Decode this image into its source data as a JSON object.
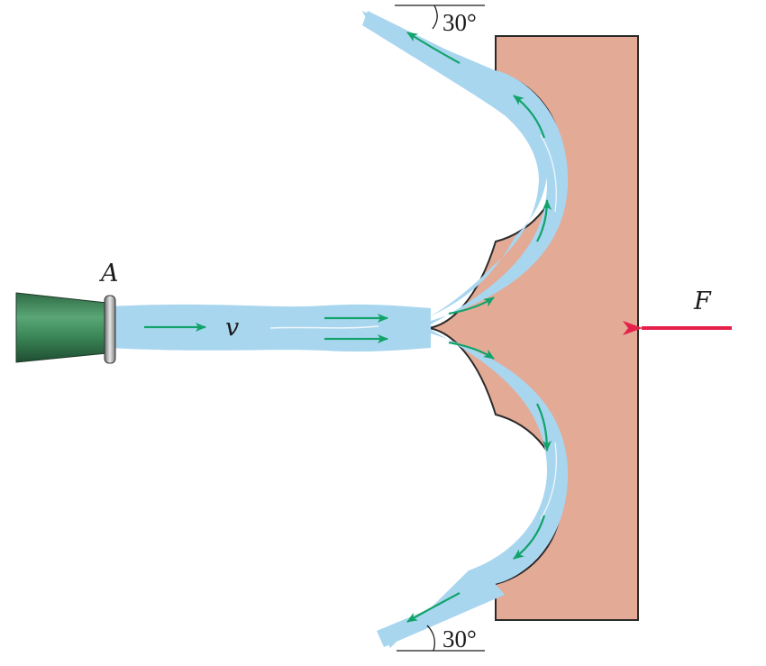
{
  "labels": {
    "nozzle": "A",
    "velocity": "v",
    "force": "F",
    "angle_top": "30°",
    "angle_bottom": "30°"
  },
  "colors": {
    "water": "#a9d6ef",
    "water_edge": "#8fc6e6",
    "block": "#e3aa96",
    "block_edge": "#2a2a2a",
    "flow_arrow": "#12a36b",
    "force_arrow": "#e5204a",
    "nozzle": "#3d8a5a"
  },
  "icons": {
    "flow": "flow-arrow-icon",
    "force": "force-arrow-icon"
  }
}
